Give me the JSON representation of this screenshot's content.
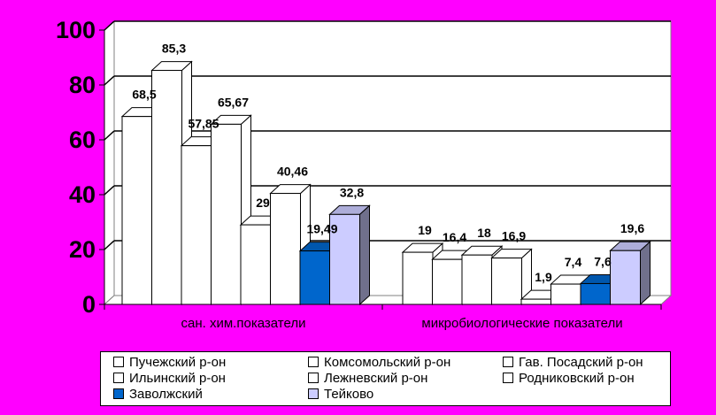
{
  "chart_data": {
    "type": "bar",
    "variant": "3d-clustered",
    "categories": [
      "сан. хим.показатели",
      "микробиологические показатели"
    ],
    "series": [
      {
        "name": "Пучежский р-он",
        "values": [
          68.5,
          19
        ],
        "labels": [
          "68,5",
          "19"
        ],
        "color": "#FFFFFF"
      },
      {
        "name": "Комсомольский р-он",
        "values": [
          85.3,
          16.4
        ],
        "labels": [
          "85,3",
          "16,4"
        ],
        "color": "#FFFFFF"
      },
      {
        "name": "Гав. Посадский р-он",
        "values": [
          57.85,
          18
        ],
        "labels": [
          "57,85",
          "18"
        ],
        "color": "#FFFFFF"
      },
      {
        "name": "Ильинский р-он",
        "values": [
          65.67,
          16.9
        ],
        "labels": [
          "65,67",
          "16,9"
        ],
        "color": "#FFFFFF"
      },
      {
        "name": "Лежневский р-он",
        "values": [
          29,
          1.9
        ],
        "labels": [
          "29",
          "1,9"
        ],
        "color": "#FFFFFF"
      },
      {
        "name": "Родниковский р-он",
        "values": [
          40.46,
          7.4
        ],
        "labels": [
          "40,46",
          "7,4"
        ],
        "color": "#FFFFFF"
      },
      {
        "name": "Заволжский",
        "values": [
          19.49,
          7.6
        ],
        "labels": [
          "19,49",
          "7,6"
        ],
        "color": "#0066CC"
      },
      {
        "name": "Тейково",
        "values": [
          32.8,
          19.6
        ],
        "labels": [
          "32,8",
          "19,6"
        ],
        "color": "#CCCCFF"
      }
    ],
    "yticks": [
      "0",
      "20",
      "40",
      "60",
      "80",
      "100"
    ],
    "ylim": [
      0,
      100
    ],
    "grid": true,
    "legend_position": "bottom"
  },
  "colors": {
    "background": "#FF00FF",
    "plot_area": "#FFFFFF",
    "legend_bg": "#FFFFFF",
    "grid": "#000000"
  }
}
